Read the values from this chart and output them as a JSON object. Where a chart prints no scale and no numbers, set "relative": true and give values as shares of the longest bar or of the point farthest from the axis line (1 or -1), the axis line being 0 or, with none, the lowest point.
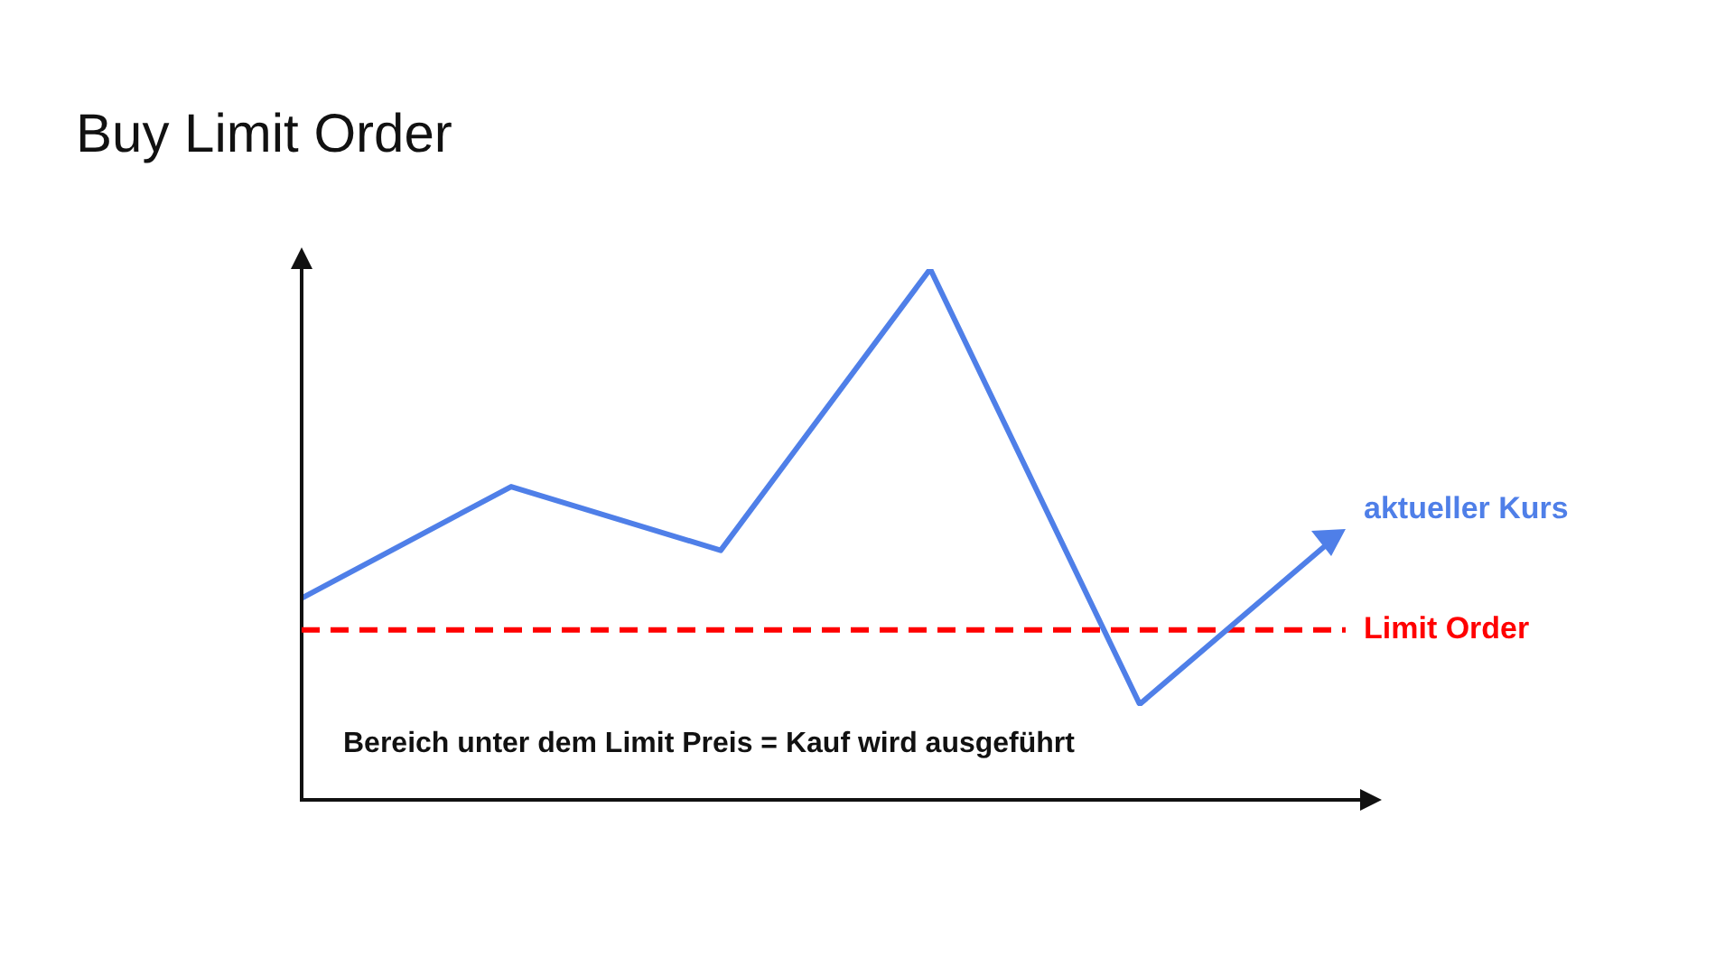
{
  "chart_data": {
    "type": "line",
    "title": "Buy Limit Order",
    "relative": true,
    "categories": [
      null,
      null,
      null,
      null,
      null
    ],
    "series": [
      {
        "name": "aktueller Kurs",
        "color": "#4f7fe8",
        "values": [
          0.38,
          0.59,
          0.47,
          1,
          0.18
        ]
      }
    ],
    "ref_lines": [
      {
        "axis": "y",
        "value": 0.32,
        "label": "Limit Order",
        "color": "#ff0000",
        "line_style": "dashed"
      }
    ],
    "annotations": [
      "Bereich unter dem Limit Preis = Kauf wird ausgeführt"
    ],
    "legend": false,
    "grid": false,
    "marker": "none",
    "line_style": "solid"
  }
}
